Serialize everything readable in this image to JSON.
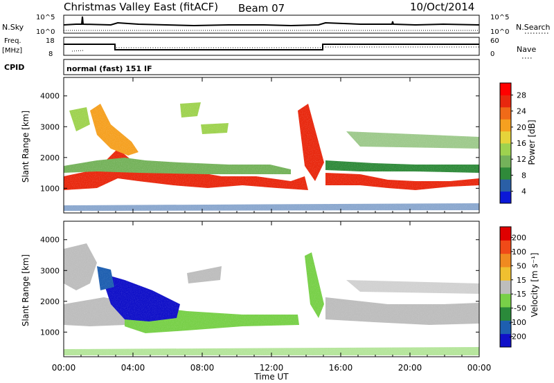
{
  "header": {
    "title": "Christmas Valley East (fitACF)",
    "beam": "Beam 07",
    "date": "10/Oct/2014"
  },
  "top_panels": {
    "nsky_label": "N.Sky",
    "nsky_ticks": [
      "10^5",
      "10^0"
    ],
    "nsearch_label": "N.Search",
    "nsearch_ticks": [
      "10^5",
      "10^0"
    ],
    "freq_label": "Freq.",
    "freq_unit": "[MHz]",
    "freq_ticks": [
      "18",
      "8"
    ],
    "nave_label": "Nave",
    "nave_ticks": [
      "60",
      "0"
    ],
    "cpid_label": "CPID",
    "cpid_value": "normal (fast) 151 IF"
  },
  "chart_data": [
    {
      "type": "heatmap",
      "name": "power",
      "ylabel": "Slant Range [km]",
      "ylim": [
        200,
        4600
      ],
      "yticks": [
        "4000",
        "3000",
        "2000",
        "1000"
      ],
      "xlim": [
        "00:00",
        "24:00"
      ],
      "colorbar": {
        "label": "Power [dB]",
        "tick_labels": [
          "28",
          "24",
          "20",
          "16",
          "12",
          "8",
          "4"
        ],
        "colors": [
          "#0b18d8",
          "#2a5fa6",
          "#2f8a3a",
          "#74b25a",
          "#9ed24f",
          "#e6d43a",
          "#f5a020",
          "#f06a18",
          "#e8280e",
          "#ff0000"
        ]
      }
    },
    {
      "type": "heatmap",
      "name": "velocity",
      "ylabel": "Slant Range [km]",
      "ylim": [
        200,
        4600
      ],
      "yticks": [
        "4000",
        "3000",
        "2000",
        "1000"
      ],
      "xlim": [
        "00:00",
        "24:00"
      ],
      "xlabel": "Time UT",
      "xticks": [
        "00:00",
        "04:00",
        "08:00",
        "12:00",
        "16:00",
        "20:00",
        "00:00"
      ],
      "colorbar": {
        "label": "Velocity [m s⁻¹]",
        "tick_labels": [
          "200",
          "100",
          "50",
          "15",
          "-15",
          "-50",
          "-100",
          "-200"
        ],
        "colors": [
          "#1010c8",
          "#1e5fb0",
          "#2a8a3a",
          "#78d048",
          "#bdbdbd",
          "#f0c030",
          "#f08a20",
          "#f04a18",
          "#e00000"
        ]
      }
    }
  ]
}
